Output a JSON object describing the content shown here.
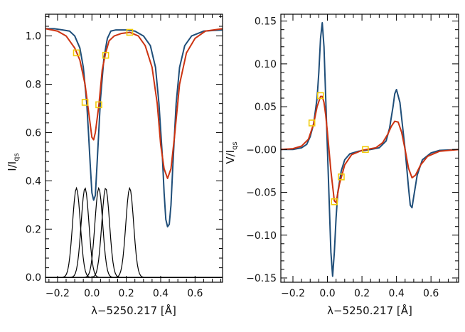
{
  "chart_data": [
    {
      "type": "line",
      "panel": "left",
      "xlabel": "λ−5250.217 [Å]",
      "ylabel": {
        "main": "I/I",
        "sub": "qs"
      },
      "xlim": [
        -0.27,
        0.76
      ],
      "ylim": [
        -0.02,
        1.09
      ],
      "xticks": [
        -0.2,
        0.0,
        0.2,
        0.4,
        0.6
      ],
      "xtick_labels": [
        "−0.2",
        "0.0",
        "0.2",
        "0.4",
        "0.6"
      ],
      "yticks": [
        0.0,
        0.2,
        0.4,
        0.6,
        0.8,
        1.0
      ],
      "ytick_labels": [
        "0.0",
        "0.2",
        "0.4",
        "0.6",
        "0.8",
        "1.0"
      ],
      "series": [
        {
          "color": "#1f4e79",
          "x": [
            -0.27,
            -0.22,
            -0.17,
            -0.13,
            -0.1,
            -0.07,
            -0.05,
            -0.03,
            -0.02,
            -0.01,
            0.0,
            0.01,
            0.02,
            0.03,
            0.05,
            0.07,
            0.09,
            0.11,
            0.14,
            0.2,
            0.25,
            0.3,
            0.34,
            0.37,
            0.39,
            0.41,
            0.42,
            0.43,
            0.44,
            0.45,
            0.46,
            0.47,
            0.49,
            0.51,
            0.54,
            0.58,
            0.65,
            0.76
          ],
          "y": [
            1.03,
            1.03,
            1.025,
            1.02,
            1.0,
            0.95,
            0.87,
            0.72,
            0.6,
            0.47,
            0.35,
            0.32,
            0.34,
            0.47,
            0.74,
            0.91,
            0.99,
            1.02,
            1.025,
            1.025,
            1.02,
            1.0,
            0.96,
            0.87,
            0.72,
            0.5,
            0.35,
            0.24,
            0.21,
            0.22,
            0.3,
            0.45,
            0.72,
            0.87,
            0.96,
            1.0,
            1.02,
            1.025
          ]
        },
        {
          "color": "#cc3311",
          "x": [
            -0.27,
            -0.2,
            -0.15,
            -0.1,
            -0.07,
            -0.04,
            -0.02,
            0.0,
            0.01,
            0.02,
            0.04,
            0.06,
            0.08,
            0.1,
            0.13,
            0.17,
            0.22,
            0.27,
            0.31,
            0.35,
            0.38,
            0.4,
            0.42,
            0.44,
            0.46,
            0.48,
            0.51,
            0.55,
            0.6,
            0.66,
            0.76
          ],
          "y": [
            1.03,
            1.02,
            1.0,
            0.95,
            0.9,
            0.8,
            0.69,
            0.58,
            0.57,
            0.6,
            0.71,
            0.86,
            0.93,
            0.98,
            1.0,
            1.01,
            1.015,
            1.0,
            0.96,
            0.87,
            0.72,
            0.55,
            0.45,
            0.41,
            0.45,
            0.58,
            0.8,
            0.93,
            0.99,
            1.02,
            1.03
          ]
        }
      ],
      "component_profiles": {
        "color": "#000000",
        "centers": [
          -0.09,
          -0.04,
          0.04,
          0.08,
          0.22
        ],
        "peak": 0.37,
        "width": 0.032
      },
      "markers": {
        "color": "#f2cc0c",
        "points": [
          [
            -0.09,
            0.93
          ],
          [
            -0.04,
            0.725
          ],
          [
            0.04,
            0.715
          ],
          [
            0.08,
            0.92
          ],
          [
            0.22,
            1.015
          ]
        ]
      }
    },
    {
      "type": "line",
      "panel": "right",
      "xlabel": "λ−5250.217 [Å]",
      "ylabel": {
        "main": "V/I",
        "sub": "qs"
      },
      "xlim": [
        -0.27,
        0.76
      ],
      "ylim": [
        -0.155,
        0.158
      ],
      "xticks": [
        -0.2,
        0.0,
        0.2,
        0.4,
        0.6
      ],
      "xtick_labels": [
        "−0.2",
        "0.0",
        "0.2",
        "0.4",
        "0.6"
      ],
      "yticks": [
        -0.15,
        -0.1,
        -0.05,
        0.0,
        0.05,
        0.1,
        0.15
      ],
      "ytick_labels": [
        "−0.15",
        "−0.10",
        "−0.05",
        "−0.00",
        "0.05",
        "0.10",
        "0.15"
      ],
      "series": [
        {
          "color": "#1f4e79",
          "x": [
            -0.27,
            -0.2,
            -0.15,
            -0.12,
            -0.1,
            -0.08,
            -0.06,
            -0.05,
            -0.04,
            -0.03,
            -0.02,
            -0.01,
            0.0,
            0.01,
            0.02,
            0.03,
            0.04,
            0.05,
            0.06,
            0.08,
            0.1,
            0.13,
            0.18,
            0.25,
            0.3,
            0.34,
            0.36,
            0.38,
            0.39,
            0.4,
            0.42,
            0.45,
            0.47,
            0.48,
            0.49,
            0.5,
            0.52,
            0.55,
            0.6,
            0.65,
            0.76
          ],
          "y": [
            0.0,
            0.0,
            0.002,
            0.006,
            0.015,
            0.03,
            0.06,
            0.09,
            0.13,
            0.148,
            0.12,
            0.06,
            0.0,
            -0.06,
            -0.12,
            -0.148,
            -0.12,
            -0.08,
            -0.05,
            -0.025,
            -0.012,
            -0.005,
            -0.002,
            0.0,
            0.002,
            0.01,
            0.025,
            0.05,
            0.065,
            0.07,
            0.055,
            0.0,
            -0.045,
            -0.065,
            -0.068,
            -0.055,
            -0.03,
            -0.012,
            -0.004,
            -0.001,
            0.0
          ]
        },
        {
          "color": "#cc3311",
          "x": [
            -0.27,
            -0.2,
            -0.15,
            -0.11,
            -0.08,
            -0.06,
            -0.04,
            -0.03,
            -0.02,
            -0.01,
            0.0,
            0.02,
            0.04,
            0.05,
            0.07,
            0.1,
            0.14,
            0.2,
            0.28,
            0.32,
            0.35,
            0.37,
            0.39,
            0.41,
            0.43,
            0.45,
            0.47,
            0.49,
            0.51,
            0.54,
            0.58,
            0.65,
            0.76
          ],
          "y": [
            0.0,
            0.001,
            0.004,
            0.012,
            0.03,
            0.05,
            0.062,
            0.062,
            0.055,
            0.04,
            0.02,
            -0.025,
            -0.06,
            -0.062,
            -0.04,
            -0.018,
            -0.006,
            -0.001,
            0.002,
            0.008,
            0.018,
            0.027,
            0.033,
            0.032,
            0.02,
            0.0,
            -0.022,
            -0.033,
            -0.03,
            -0.018,
            -0.008,
            -0.002,
            0.0
          ]
        }
      ],
      "markers": {
        "color": "#f2cc0c",
        "points": [
          [
            -0.09,
            0.031
          ],
          [
            -0.04,
            0.063
          ],
          [
            0.04,
            -0.061
          ],
          [
            0.08,
            -0.032
          ],
          [
            0.22,
            0.0
          ]
        ]
      }
    }
  ]
}
